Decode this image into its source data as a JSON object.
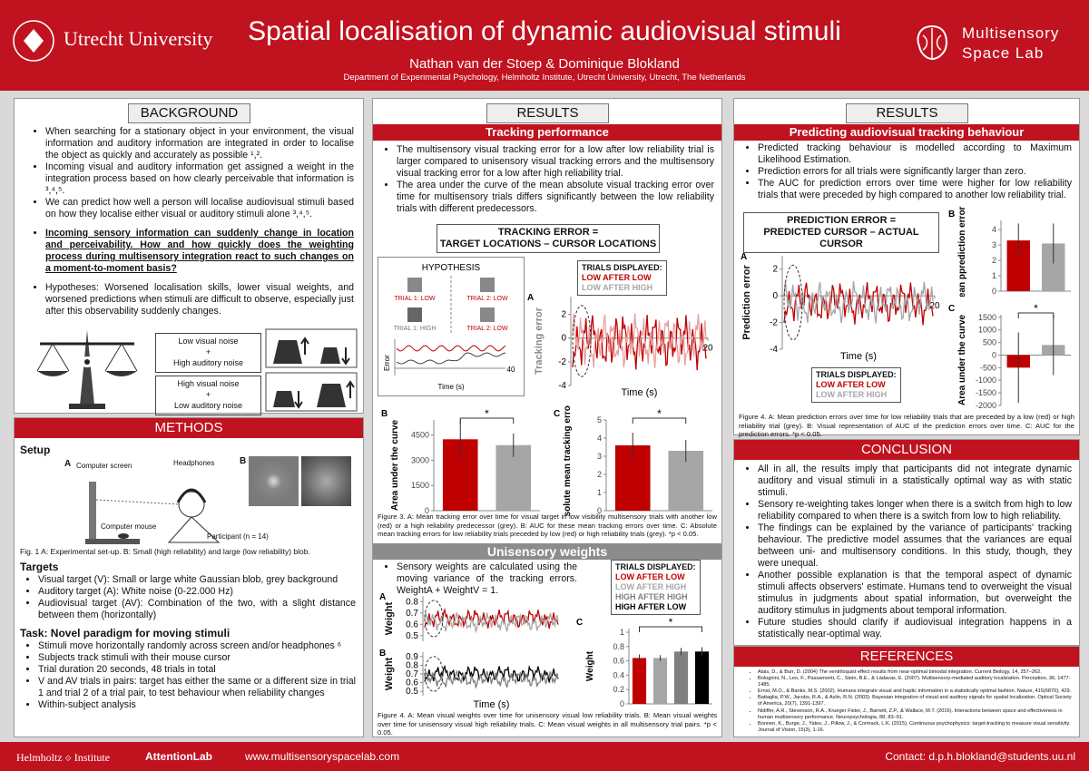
{
  "header": {
    "university": "Utrecht University",
    "title": "Spatial localisation of dynamic audiovisual stimuli",
    "authors": "Nathan van der Stoep & Dominique Blokland",
    "affiliation": "Department of Experimental Psychology, Helmholtz Institute, Utrecht University, Utrecht, The Netherlands",
    "lab": [
      "Multisensory",
      "Space Lab"
    ]
  },
  "background": {
    "heading": "BACKGROUND",
    "bullets": [
      "When searching for a stationary object in your environment, the visual information and auditory information are integrated in order to localise the object as quickly and accurately as possible ¹,².",
      "Incoming visual and auditory information get assigned a weight in the integration process based on how clearly perceivable that information is ³,⁴,⁵.",
      "We can predict how well a person will localise audiovisual stimuli based on how they localise either visual or auditory stimuli alone ³,⁴,⁵."
    ],
    "question": "Incoming sensory information can suddenly change in location and perceivability. How and how quickly does the weighting process during multisensory integration react to such changes on a moment-to-moment basis?",
    "hypotheses": "Hypotheses: Worsened localisation skills, lower visual weights, and worsened predictions when stimuli are difficult to observe, especially just after this observability suddenly changes.",
    "box1": [
      "Low visual noise",
      "+",
      "High auditory noise"
    ],
    "box2": [
      "High visual noise",
      "+",
      "Low auditory noise"
    ]
  },
  "methods": {
    "heading": "METHODS",
    "setup": "Setup",
    "panel_labels": [
      "A",
      "B"
    ],
    "setup_labels": [
      "Computer screen",
      "Headphones",
      "Computer mouse",
      "Participant (n = 14)"
    ],
    "caption": "Fig. 1 A: Experimental set-up. B: Small (high reliability) and large (low reliability) blob.",
    "targets_heading": "Targets",
    "targets": [
      "Visual target (V): Small or large white Gaussian blob, grey background",
      "Auditory target (A): White noise (0-22.000 Hz)",
      "Audiovisual target (AV): Combination of the two, with a slight distance between them (horizontally)"
    ],
    "task_heading": "Task: Novel paradigm for moving stimuli",
    "task": [
      "Stimuli move horizontally randomly across screen and/or headphones ⁶",
      "Subjects track stimuli with their mouse cursor",
      "Trial duration 20 seconds, 48 trials in total",
      "V and AV trials in pairs: target has either the same or a different size in trial 1 and trial 2 of a trial pair, to test behaviour when reliability changes",
      "Within-subject analysis"
    ]
  },
  "results_mid": {
    "heading": "RESULTS",
    "subheading": "Tracking performance",
    "bullets": [
      "The multisensory visual tracking error for a low after low reliability trial is larger compared to unisensory visual tracking errors and the multisensory visual tracking error for a low after high reliability trial.",
      "The area under the curve of the mean absolute visual tracking error over time for multisensory trials differs significantly between the low reliability trials with different predecessors."
    ],
    "equation": [
      "TRACKING ERROR =",
      "TARGET LOCATIONS – CURSOR LOCATIONS"
    ],
    "hypothesis": {
      "title": "HYPOTHESIS",
      "trials": [
        "TRIAL 1: LOW",
        "TRIAL 2: LOW",
        "TRIAL 1: HIGH",
        "TRIAL 2: LOW"
      ],
      "ylabel": "Error",
      "xlabel": "Time (s)",
      "xend": "40"
    },
    "legend": {
      "title": "TRIALS DISPLAYED:",
      "entries": [
        {
          "text": "LOW AFTER LOW",
          "color": "#c00000"
        },
        {
          "text": "LOW AFTER HIGH",
          "color": "#a6a6a6"
        }
      ]
    },
    "plot_a": {
      "label": "A",
      "ylabel": "Tracking error",
      "xlabel": "Time (s)",
      "ylim": [
        -4,
        3.5
      ],
      "yticks": [
        2,
        0,
        -2,
        -4
      ],
      "xlim": [
        0,
        20
      ],
      "xticks": [
        20
      ],
      "colors": [
        "#c00000",
        "#e8a0a0"
      ]
    },
    "bars_b": {
      "label": "B",
      "ylabel": "Area under the curve",
      "ylim": [
        0,
        5400
      ],
      "yticks": [
        0,
        1500,
        3000,
        4500
      ],
      "values": [
        4250,
        3900
      ],
      "errors": [
        1200,
        700
      ],
      "colors": [
        "#c00000",
        "#a6a6a6"
      ],
      "significance": "*"
    },
    "bars_c": {
      "label": "C",
      "ylabel": "Absolute mean tracking error",
      "ylim": [
        0,
        5
      ],
      "yticks": [
        0,
        1,
        2,
        3,
        4,
        5
      ],
      "values": [
        3.6,
        3.3
      ],
      "errors": [
        0.7,
        0.6
      ],
      "colors": [
        "#c00000",
        "#a6a6a6"
      ],
      "significance": "*"
    },
    "caption": "Figure 3. A: Mean tracking error over time for visual target in low visibility multisensory trials with another low (red) or a high reliability predecessor (grey). B: AUC for these mean tracking errors over time. C: Absolute mean tracking errors for low reliability trials preceded by low (red) or high reliability trials (grey). *p < 0.05.",
    "uni_heading": "Unisensory weights",
    "uni_bullets": [
      "Sensory weights are calculated using the moving variance of the tracking errors. WeightA + WeightV = 1."
    ],
    "uni_legend": {
      "title": "TRIALS DISPLAYED:",
      "entries": [
        {
          "text": "LOW AFTER LOW",
          "color": "#c00000"
        },
        {
          "text": "LOW AFTER HIGH",
          "color": "#a6a6a6"
        },
        {
          "text": "HIGH AFTER HIGH",
          "color": "#7f7f7f"
        },
        {
          "text": "HIGH AFTER LOW",
          "color": "#000000"
        }
      ]
    },
    "uni_plot_a": {
      "label": "A",
      "ylabel": "Weight",
      "ylim": [
        0.45,
        0.85
      ],
      "yticks": [
        0.8,
        0.7,
        0.6,
        0.5
      ],
      "colors": [
        "#c00000",
        "#a6a6a6"
      ]
    },
    "uni_plot_b": {
      "label": "B",
      "ylabel": "Weight",
      "xlabel": "Time (s)",
      "ylim": [
        0.45,
        0.95
      ],
      "yticks": [
        0.9,
        0.8,
        0.7,
        0.6,
        0.5
      ],
      "colors": [
        "#000000",
        "#7f7f7f"
      ]
    },
    "uni_bars": {
      "label": "C",
      "ylabel": "Weight",
      "ylim": [
        0,
        1.05
      ],
      "yticks": [
        0,
        0.2,
        0.4,
        0.6,
        0.8,
        1
      ],
      "values": [
        0.64,
        0.64,
        0.73,
        0.73
      ],
      "errors": [
        0.05,
        0.04,
        0.05,
        0.06
      ],
      "colors": [
        "#c00000",
        "#a6a6a6",
        "#7f7f7f",
        "#000000"
      ],
      "significance": "*"
    },
    "uni_caption": "Figure 4. A: Mean visual weights over time for unisensory visual low reliability trials. B: Mean visual weights over time for unisensory visual high reliability trials. C: Mean visual weights in all multisensory trial pairs. *p < 0.05."
  },
  "results_right": {
    "heading": "RESULTS",
    "subheading": "Predicting audiovisual tracking behaviour",
    "bullets": [
      "Predicted tracking behaviour is modelled according to Maximum Likelihood Estimation.",
      "Prediction errors for all trials were significantly larger than zero.",
      "The AUC for prediction errors over time were higher for low reliability trials that were preceded by high compared to another low reliability trial."
    ],
    "equation": [
      "PREDICTION ERROR =",
      "PREDICTED CURSOR – ACTUAL CURSOR"
    ],
    "plot_a": {
      "label": "A",
      "ylabel": "Prediction error",
      "xlabel": "Time (s)",
      "ylim": [
        -4,
        3
      ],
      "yticks": [
        2,
        0,
        -2,
        -4
      ],
      "xlim": [
        0,
        20
      ],
      "xticks": [
        20
      ],
      "colors": [
        "#c00000",
        "#a6a6a6"
      ]
    },
    "legend": {
      "title": "TRIALS DISPLAYED:",
      "entries": [
        {
          "text": "LOW AFTER LOW",
          "color": "#c00000"
        },
        {
          "text": "LOW AFTER HIGH",
          "color": "#a6a6a6"
        }
      ]
    },
    "bars_b": {
      "label": "B",
      "ylabel": "Mean pprediction error",
      "ylim": [
        0,
        4.6
      ],
      "yticks": [
        0,
        1,
        2,
        3,
        4
      ],
      "values": [
        3.3,
        3.1
      ],
      "errors": [
        1.1,
        1.3
      ],
      "colors": [
        "#c00000",
        "#a6a6a6"
      ]
    },
    "bars_c": {
      "label": "C",
      "ylabel": "Area under the curve",
      "ylim": [
        -2000,
        1600
      ],
      "yticks": [
        -2000,
        -1500,
        -1000,
        -500,
        0,
        500,
        1000,
        1500
      ],
      "values": [
        -500,
        400
      ],
      "errors": [
        1400,
        1200
      ],
      "colors": [
        "#c00000",
        "#a6a6a6"
      ],
      "significance": "*"
    },
    "caption": "Figure 4. A: Mean prediction errors over time for low reliability trials that are preceded by a low (red) or high reliability trial (grey). B: Visual representation of AUC of the prediction errors over time. C: AUC for the prediction errors. *p < 0.05.",
    "conclusion_heading": "CONCLUSION",
    "conclusion": [
      "All in all, the results imply that participants did not integrate dynamic auditory and visual stimuli in a statistically optimal way as with static stimuli.",
      "Sensory re-weighting takes longer when there is a switch from high to low reliability compared to when there is a switch from low to high reliability.",
      "The findings can be explained by the variance of participants' tracking behaviour. The predictive model assumes that the variances are equal between uni- and multisensory conditions. In this study, though, they were unequal.",
      "Another possible explanation is that the temporal aspect of dynamic stimuli affects observers' estimate. Humans tend to overweight the visual stimulus in judgments about spatial information, but overweight the auditory stimulus in judgments about temporal information.",
      "Future studies should clarify if audiovisual integration happens in a statistically near-optimal way."
    ],
    "references_heading": "REFERENCES",
    "references": [
      "Alais, D., & Burr, D. (2004) The ventriloquist effect results from near-optimal bimodal integration. Current Biology, 14, 257–262.",
      "Bolognini, N., Leo, F., Passamonti, C., Stein, B.E., & Làdavas, E. (2007). Multisensory-mediated auditory localization. Perception, 36, 1477-1485.",
      "Ernst, M.O., & Banks, M.S. (2002). Humans integrate visual and haptic information in a statistically optimal fashion. Nature, 415(6870), 429.",
      "Battaglia, P.W., Jacobs, R.A., & Aslin, R.N. (2003). Bayesian integration of visual and auditory signals for spatial localization. Optical Society of America, 20(7), 1391-1397.",
      "Nidiffer, A.R., Stevenson, R.A., Krueger Fister, J., Barnett, Z.P., & Wallace, M.T. (2016). Interactions between space and effectiveness in human multisensory performance. Neuropsychologia, 88, 83–91.",
      "Bonnen, K., Burge, J., Yates, J., Pillow, J., & Cormack, L.K. (2015). Continuous psychophysics: target-tracking to measure visual sensitivity. Journal of Vision, 15(3), 1-16."
    ]
  },
  "footer": {
    "logos": [
      "Helmholtz",
      "Institute",
      "AttentionLab"
    ],
    "website": "www.multisensoryspacelab.com",
    "contact": "Contact: d.p.h.blokland@students.uu.nl"
  }
}
